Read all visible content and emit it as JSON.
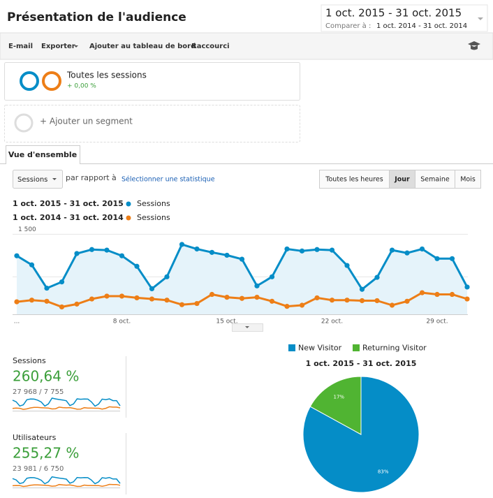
{
  "header": {
    "title": "Présentation de l'audience",
    "date_range": "1 oct. 2015 - 31 oct. 2015",
    "compare_label": "Comparer à :",
    "compare_range": "1 oct. 2014 - 31 oct. 2014"
  },
  "toolbar": [
    "E-mail",
    "Exporter",
    "Ajouter au tableau de bord",
    "Raccourci"
  ],
  "segments": {
    "active": {
      "name": "Toutes les sessions",
      "change": "+ 0,00 %"
    },
    "add": "+ Ajouter un segment"
  },
  "tab": "Vue d'ensemble",
  "controls": {
    "metric": "Sessions",
    "compare_label": "par rapport à",
    "select_link": "Sélectionner une statistique",
    "granularity": [
      "Toutes les heures",
      "Jour",
      "Semaine",
      "Mois"
    ],
    "selected": 1
  },
  "metrics": [
    {
      "name": "Sessions",
      "change": "260,64 %",
      "totals": "27 968 / 7 755"
    },
    {
      "name": "Utilisateurs",
      "change": "255,27 %",
      "totals": "23 981 / 6 750"
    }
  ],
  "chart_data": [
    {
      "type": "line",
      "categories": [
        "...",
        null,
        null,
        null,
        null,
        null,
        null,
        "8 oct.",
        null,
        null,
        null,
        null,
        null,
        null,
        "15 oct.",
        null,
        null,
        null,
        null,
        null,
        null,
        "22 oct.",
        null,
        null,
        null,
        null,
        null,
        null,
        "29 oct.",
        null,
        null
      ],
      "series": [
        {
          "name": "Sessions",
          "range": "1 oct. 2015 - 31 oct. 2015 :",
          "color": "#058dc7",
          "area": true,
          "values": [
            1120,
            960,
            550,
            660,
            1160,
            1230,
            1220,
            1120,
            935,
            540,
            750,
            1320,
            1240,
            1180,
            1130,
            1060,
            590,
            750,
            1240,
            1205,
            1230,
            1220,
            950,
            530,
            740,
            1220,
            1170,
            1240,
            1070,
            1070,
            570
          ]
        },
        {
          "name": "Sessions",
          "range": "1 oct. 2014 - 31 oct. 2014 :",
          "color": "#ed7e17",
          "area": false,
          "values": [
            310,
            340,
            320,
            220,
            270,
            360,
            410,
            410,
            380,
            360,
            340,
            260,
            280,
            440,
            390,
            370,
            390,
            320,
            230,
            250,
            380,
            340,
            340,
            330,
            330,
            250,
            320,
            470,
            440,
            440,
            360
          ]
        }
      ],
      "ylim": [
        90,
        1590
      ],
      "yticks": [
        750,
        {
          "value": 1500,
          "label": "1 500"
        }
      ],
      "grid": true
    },
    {
      "type": "pie",
      "title": "1 oct. 2015 - 31 oct. 2015",
      "categories": [
        "New Visitor",
        "Returning Visitor"
      ],
      "values": [
        83,
        17
      ],
      "value_labels": [
        "83%",
        "17%"
      ],
      "colors": [
        "#058dc7",
        "#50b432"
      ]
    },
    {
      "type": "sparkline",
      "series": [
        {
          "color": "#058dc7",
          "values": [
            960,
            830,
            480,
            570,
            1000,
            1060,
            1050,
            960,
            800,
            460,
            650,
            1130,
            1070,
            1010,
            970,
            910,
            510,
            650,
            1070,
            1040,
            1060,
            1050,
            820,
            460,
            640,
            1050,
            1000,
            1070,
            920,
            920,
            490
          ]
        },
        {
          "color": "#ed7e17",
          "values": [
            270,
            290,
            280,
            190,
            230,
            310,
            350,
            350,
            330,
            310,
            290,
            220,
            240,
            380,
            340,
            320,
            340,
            280,
            200,
            210,
            330,
            290,
            290,
            280,
            280,
            210,
            280,
            400,
            380,
            380,
            310
          ]
        }
      ],
      "ylim": [
        90,
        1590
      ]
    }
  ]
}
